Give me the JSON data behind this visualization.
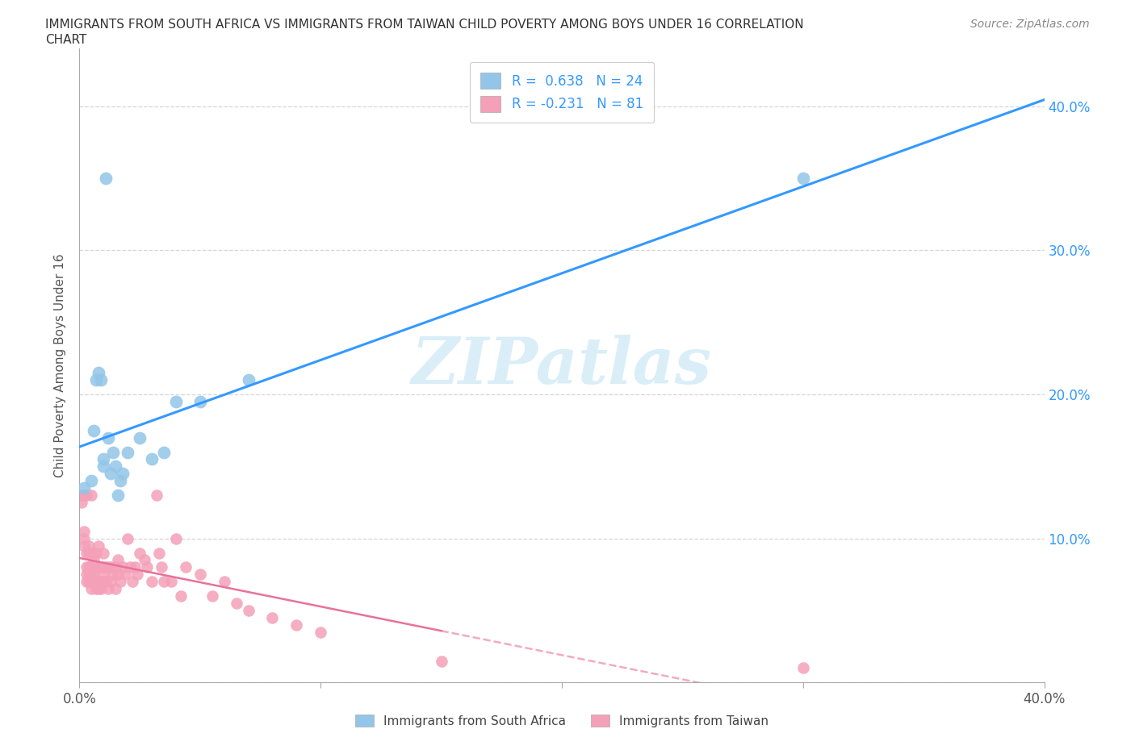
{
  "title_line1": "IMMIGRANTS FROM SOUTH AFRICA VS IMMIGRANTS FROM TAIWAN CHILD POVERTY AMONG BOYS UNDER 16 CORRELATION",
  "title_line2": "CHART",
  "source": "Source: ZipAtlas.com",
  "ylabel": "Child Poverty Among Boys Under 16",
  "xlim": [
    0,
    0.4
  ],
  "ylim": [
    0,
    0.44
  ],
  "r_south_africa": 0.638,
  "n_south_africa": 24,
  "r_taiwan": -0.231,
  "n_taiwan": 81,
  "color_south_africa": "#92c5e8",
  "color_taiwan": "#f4a0b8",
  "line_color_sa": "#3399ff",
  "line_color_tw": "#e8729a",
  "legend_south_africa": "Immigrants from South Africa",
  "legend_taiwan": "Immigrants from Taiwan",
  "watermark": "ZIPatlas",
  "watermark_color": "#daeef8",
  "south_africa_x": [
    0.002,
    0.005,
    0.006,
    0.007,
    0.008,
    0.009,
    0.01,
    0.01,
    0.011,
    0.012,
    0.013,
    0.014,
    0.015,
    0.016,
    0.017,
    0.018,
    0.02,
    0.025,
    0.03,
    0.035,
    0.04,
    0.05,
    0.07,
    0.3
  ],
  "south_africa_y": [
    0.135,
    0.14,
    0.175,
    0.21,
    0.215,
    0.21,
    0.15,
    0.155,
    0.35,
    0.17,
    0.145,
    0.16,
    0.15,
    0.13,
    0.14,
    0.145,
    0.16,
    0.17,
    0.155,
    0.16,
    0.195,
    0.195,
    0.21,
    0.35
  ],
  "taiwan_x": [
    0.001,
    0.001,
    0.002,
    0.002,
    0.002,
    0.002,
    0.003,
    0.003,
    0.003,
    0.003,
    0.003,
    0.004,
    0.004,
    0.004,
    0.004,
    0.004,
    0.005,
    0.005,
    0.005,
    0.005,
    0.005,
    0.006,
    0.006,
    0.006,
    0.006,
    0.006,
    0.007,
    0.007,
    0.007,
    0.007,
    0.008,
    0.008,
    0.008,
    0.009,
    0.009,
    0.009,
    0.01,
    0.01,
    0.01,
    0.01,
    0.011,
    0.011,
    0.012,
    0.012,
    0.013,
    0.013,
    0.014,
    0.015,
    0.015,
    0.016,
    0.016,
    0.017,
    0.018,
    0.019,
    0.02,
    0.021,
    0.022,
    0.023,
    0.024,
    0.025,
    0.027,
    0.028,
    0.03,
    0.032,
    0.033,
    0.034,
    0.035,
    0.038,
    0.04,
    0.042,
    0.044,
    0.05,
    0.055,
    0.06,
    0.065,
    0.07,
    0.08,
    0.09,
    0.1,
    0.15,
    0.3
  ],
  "taiwan_y": [
    0.125,
    0.13,
    0.095,
    0.1,
    0.105,
    0.13,
    0.07,
    0.075,
    0.08,
    0.09,
    0.13,
    0.07,
    0.075,
    0.08,
    0.09,
    0.095,
    0.065,
    0.07,
    0.075,
    0.08,
    0.13,
    0.07,
    0.075,
    0.08,
    0.085,
    0.09,
    0.065,
    0.07,
    0.08,
    0.09,
    0.065,
    0.07,
    0.095,
    0.065,
    0.07,
    0.08,
    0.07,
    0.075,
    0.08,
    0.09,
    0.07,
    0.08,
    0.065,
    0.08,
    0.07,
    0.08,
    0.075,
    0.065,
    0.08,
    0.075,
    0.085,
    0.07,
    0.08,
    0.075,
    0.1,
    0.08,
    0.07,
    0.08,
    0.075,
    0.09,
    0.085,
    0.08,
    0.07,
    0.13,
    0.09,
    0.08,
    0.07,
    0.07,
    0.1,
    0.06,
    0.08,
    0.075,
    0.06,
    0.07,
    0.055,
    0.05,
    0.045,
    0.04,
    0.035,
    0.015,
    0.01
  ]
}
